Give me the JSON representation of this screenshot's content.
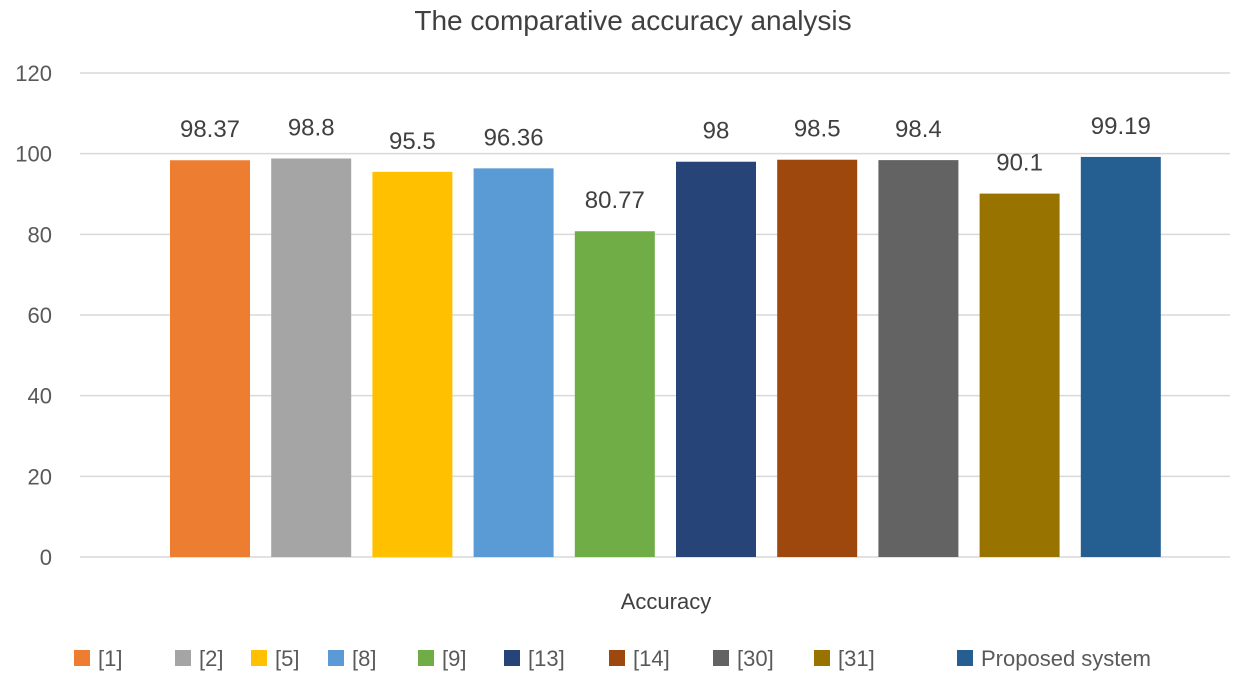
{
  "chart_data": {
    "type": "bar",
    "title": "The comparative accuracy analysis",
    "xlabel": "Accuracy",
    "ylabel": "",
    "ylim": [
      0,
      120
    ],
    "yticks": [
      0,
      20,
      40,
      60,
      80,
      100,
      120
    ],
    "grid": true,
    "legend_position": "bottom",
    "categories": [
      "Accuracy"
    ],
    "series": [
      {
        "name": "[1]",
        "value": 98.37,
        "label": "98.37",
        "color": "#ED7D31"
      },
      {
        "name": "[2]",
        "value": 98.8,
        "label": "98.8",
        "color": "#A5A5A5"
      },
      {
        "name": "[5]",
        "value": 95.5,
        "label": "95.5",
        "color": "#FFC000"
      },
      {
        "name": "[8]",
        "value": 96.36,
        "label": "96.36",
        "color": "#5B9BD5"
      },
      {
        "name": "[9]",
        "value": 80.77,
        "label": "80.77",
        "color": "#70AD47"
      },
      {
        "name": "[13]",
        "value": 98,
        "label": "98",
        "color": "#264478"
      },
      {
        "name": "[14]",
        "value": 98.5,
        "label": "98.5",
        "color": "#9E480E"
      },
      {
        "name": "[30]",
        "value": 98.4,
        "label": "98.4",
        "color": "#636363"
      },
      {
        "name": "[31]",
        "value": 90.1,
        "label": "90.1",
        "color": "#997300"
      },
      {
        "name": "Proposed system",
        "value": 99.19,
        "label": "99.19",
        "color": "#255E91"
      }
    ]
  }
}
